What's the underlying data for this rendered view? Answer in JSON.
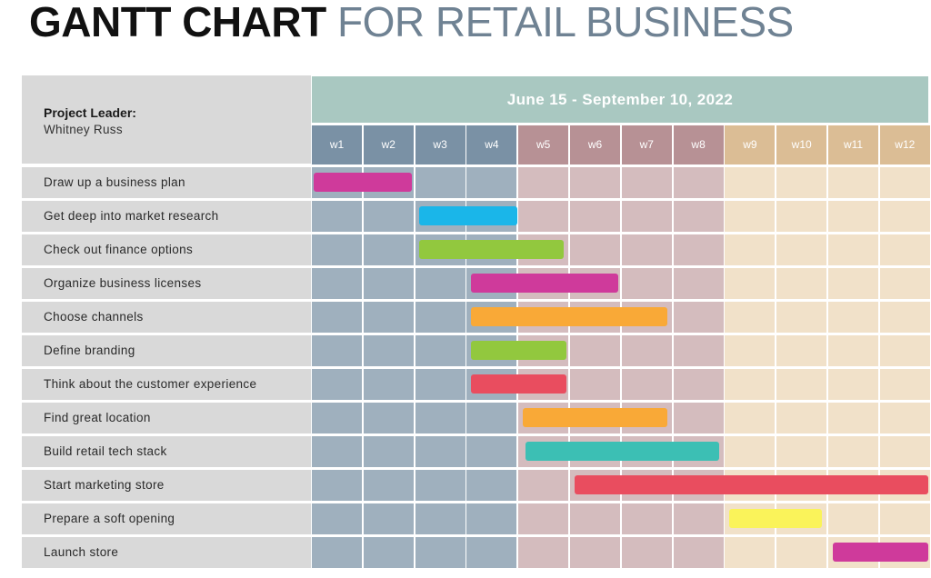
{
  "title": {
    "part1": "GANTT CHART",
    "part2": "FOR RETAIL BUSINESS"
  },
  "leader": {
    "label": "Project Leader:",
    "name": "Whitney Russ"
  },
  "date_range": "June 15 - September 10, 2022",
  "colors": {
    "header_band": "#a9c8c1",
    "label_bg": "#d9d9d9",
    "group_blue": {
      "head": "#7a91a5",
      "cell": "#9fb0be"
    },
    "group_mauve": {
      "head": "#b79195",
      "cell": "#d4bcbe"
    },
    "group_tan": {
      "head": "#dbbd95",
      "cell": "#f1e1c9"
    }
  },
  "chart_data": {
    "type": "gantt",
    "weeks": [
      "w1",
      "w2",
      "w3",
      "w4",
      "w5",
      "w6",
      "w7",
      "w8",
      "w9",
      "w10",
      "w11",
      "w12"
    ],
    "week_groups": [
      {
        "weeks": [
          1,
          4
        ],
        "color": "blue"
      },
      {
        "weeks": [
          5,
          8
        ],
        "color": "mauve"
      },
      {
        "weeks": [
          9,
          12
        ],
        "color": "tan"
      }
    ],
    "tasks": [
      {
        "name": "Draw up a business plan",
        "start": 1,
        "end": 2.9,
        "color": "#cf3a9b"
      },
      {
        "name": "Get deep into market research",
        "start": 3.05,
        "end": 4.95,
        "color": "#1ab6e9"
      },
      {
        "name": "Check out finance options",
        "start": 3.05,
        "end": 5.85,
        "color": "#92c83e"
      },
      {
        "name": "Organize business licenses",
        "start": 4.05,
        "end": 6.9,
        "color": "#cf3a9b"
      },
      {
        "name": "Choose channels",
        "start": 4.05,
        "end": 7.85,
        "color": "#f9a937"
      },
      {
        "name": "Define branding",
        "start": 4.05,
        "end": 5.9,
        "color": "#92c83e"
      },
      {
        "name": "Think about the customer experience",
        "start": 4.05,
        "end": 5.9,
        "color": "#e94d5f"
      },
      {
        "name": "Find great location",
        "start": 5.05,
        "end": 7.85,
        "color": "#f9a937"
      },
      {
        "name": "Build retail tech stack",
        "start": 5.1,
        "end": 8.85,
        "color": "#3cbfb4"
      },
      {
        "name": "Start marketing store",
        "start": 6.05,
        "end": 12.9,
        "color": "#e94d5f"
      },
      {
        "name": "Prepare a soft opening",
        "start": 9.05,
        "end": 10.85,
        "color": "#faf35a"
      },
      {
        "name": "Launch store",
        "start": 11.05,
        "end": 12.9,
        "color": "#cf3a9b"
      }
    ]
  }
}
